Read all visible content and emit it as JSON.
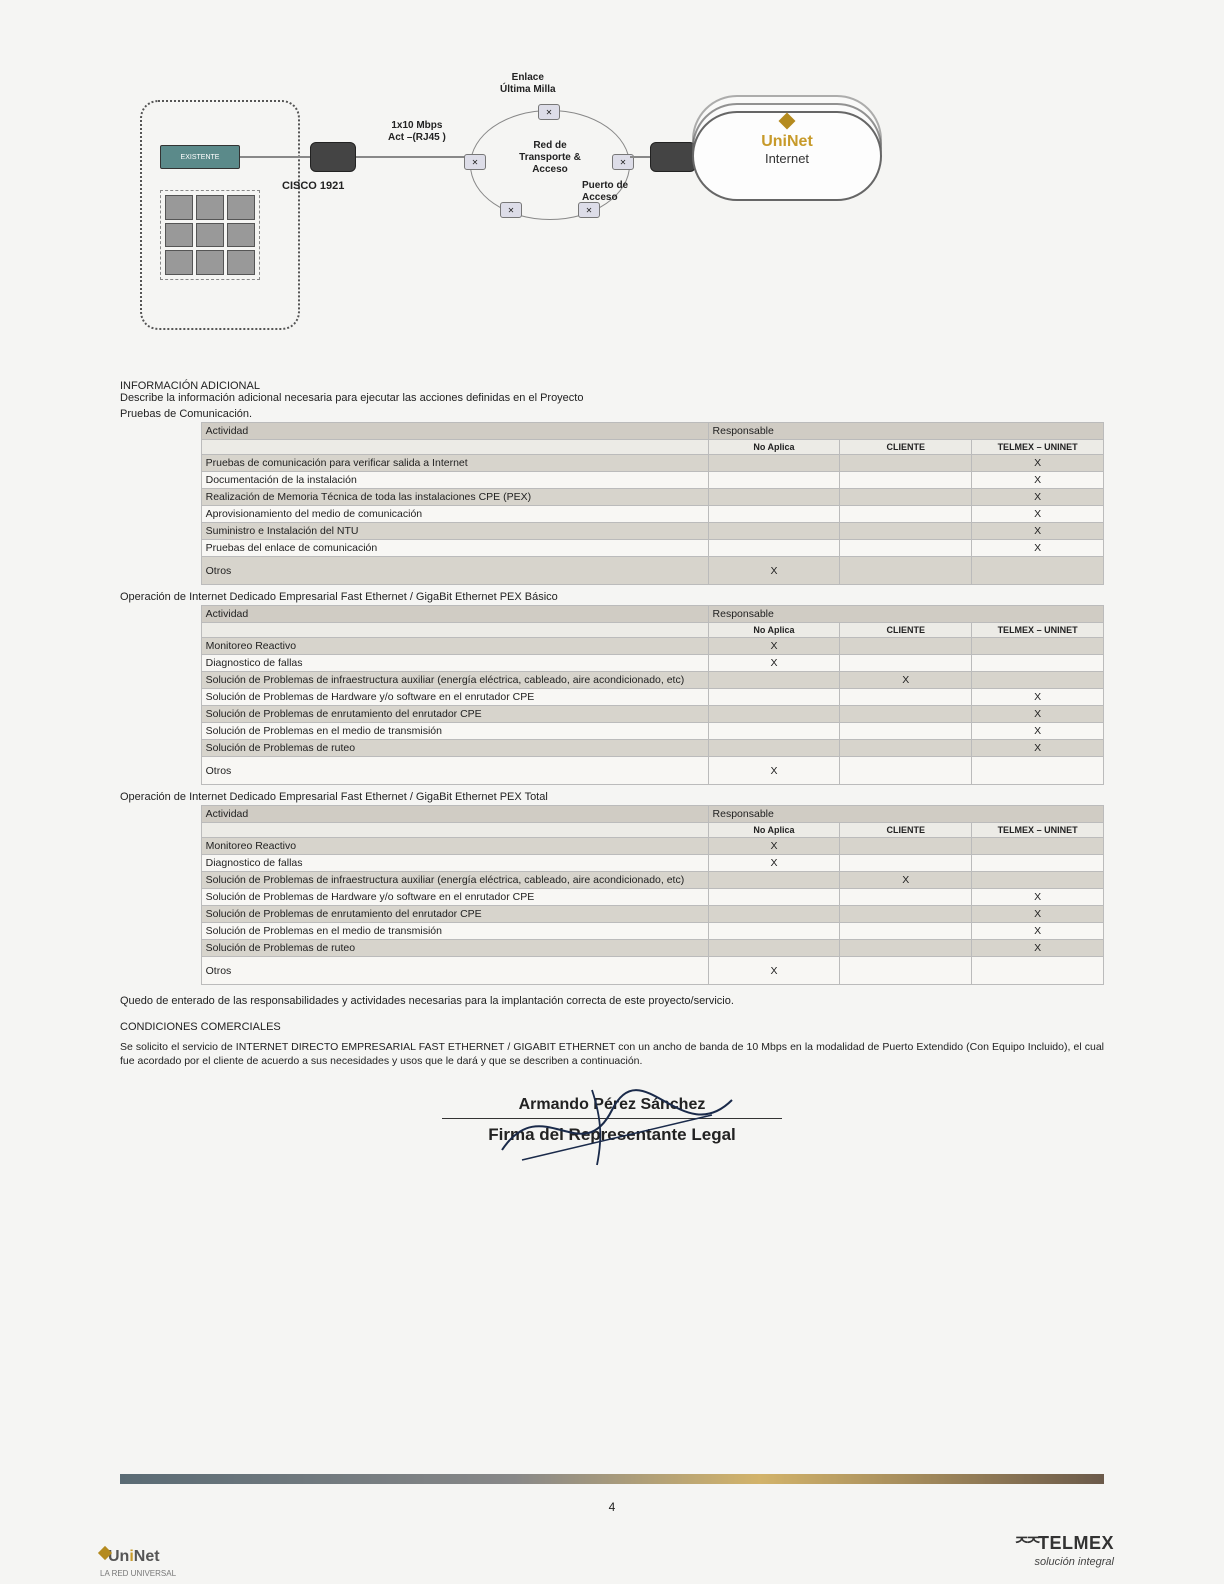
{
  "diagram": {
    "switch_label": "EXISTENTE",
    "cisco_label": "CISCO 1921",
    "link_label_l1": "1x10 Mbps",
    "link_label_l2": "Act –(RJ45 )",
    "enlace_l1": "Enlace",
    "enlace_l2": "Última Milla",
    "transport_l1": "Red de",
    "transport_l2": "Transporte &",
    "transport_l3": "Acceso",
    "puerto_l1": "Puerto de",
    "puerto_l2": "Acceso",
    "cloud_brand_pre": "Un",
    "cloud_brand_accent": "i",
    "cloud_brand_post": "Net",
    "cloud_sub": "Internet"
  },
  "info": {
    "title": "INFORMACIÓN ADICIONAL",
    "desc": "Describe la información adicional necesaria para ejecutar las acciones definidas en el Proyecto",
    "subtitle": "Pruebas de Comunicación."
  },
  "table_headers": {
    "actividad": "Actividad",
    "responsable": "Responsable",
    "no_aplica": "No Aplica",
    "cliente": "CLIENTE",
    "telmex": "TELMEX – UNINET"
  },
  "table1_rows": [
    {
      "act": "Pruebas de comunicación para verificar salida a Internet",
      "na": "",
      "cl": "",
      "tu": "X",
      "shade": true
    },
    {
      "act": "Documentación de la instalación",
      "na": "",
      "cl": "",
      "tu": "X",
      "shade": false
    },
    {
      "act": "Realización de Memoria Técnica de toda las instalaciones CPE (PEX)",
      "na": "",
      "cl": "",
      "tu": "X",
      "shade": true
    },
    {
      "act": "Aprovisionamiento del medio de comunicación",
      "na": "",
      "cl": "",
      "tu": "X",
      "shade": false
    },
    {
      "act": "Suministro e Instalación del NTU",
      "na": "",
      "cl": "",
      "tu": "X",
      "shade": true
    },
    {
      "act": "Pruebas del enlace de comunicación",
      "na": "",
      "cl": "",
      "tu": "X",
      "shade": false
    },
    {
      "act": "Otros",
      "na": "X",
      "cl": "",
      "tu": "",
      "shade": true,
      "tall": true
    }
  ],
  "section2_title": "Operación de Internet Dedicado Empresarial Fast Ethernet / GigaBit Ethernet PEX Básico",
  "table2_rows": [
    {
      "act": "Monitoreo Reactivo",
      "na": "X",
      "cl": "",
      "tu": "",
      "shade": true
    },
    {
      "act": "Diagnostico de fallas",
      "na": "X",
      "cl": "",
      "tu": "",
      "shade": false
    },
    {
      "act": "Solución de Problemas de infraestructura auxiliar (energía eléctrica, cableado, aire acondicionado, etc)",
      "na": "",
      "cl": "X",
      "tu": "",
      "shade": true
    },
    {
      "act": "Solución de Problemas de Hardware y/o software en el enrutador CPE",
      "na": "",
      "cl": "",
      "tu": "X",
      "shade": false
    },
    {
      "act": "Solución de Problemas de enrutamiento del enrutador CPE",
      "na": "",
      "cl": "",
      "tu": "X",
      "shade": true
    },
    {
      "act": "Solución de Problemas en el medio de transmisión",
      "na": "",
      "cl": "",
      "tu": "X",
      "shade": false
    },
    {
      "act": "Solución de Problemas de ruteo",
      "na": "",
      "cl": "",
      "tu": "X",
      "shade": true
    },
    {
      "act": "Otros",
      "na": "X",
      "cl": "",
      "tu": "",
      "shade": false,
      "tall": true
    }
  ],
  "section3_title": "Operación de Internet Dedicado Empresarial Fast Ethernet / GigaBit Ethernet PEX Total",
  "table3_rows": [
    {
      "act": "Monitoreo Reactivo",
      "na": "X",
      "cl": "",
      "tu": "",
      "shade": true
    },
    {
      "act": "Diagnostico de fallas",
      "na": "X",
      "cl": "",
      "tu": "",
      "shade": false
    },
    {
      "act": "Solución de Problemas de infraestructura auxiliar (energía eléctrica, cableado, aire acondicionado, etc)",
      "na": "",
      "cl": "X",
      "tu": "",
      "shade": true
    },
    {
      "act": "Solución de Problemas de Hardware y/o software en el enrutador CPE",
      "na": "",
      "cl": "",
      "tu": "X",
      "shade": false
    },
    {
      "act": "Solución de Problemas de enrutamiento del enrutador CPE",
      "na": "",
      "cl": "",
      "tu": "X",
      "shade": true
    },
    {
      "act": "Solución de Problemas en el medio de transmisión",
      "na": "",
      "cl": "",
      "tu": "X",
      "shade": false
    },
    {
      "act": "Solución de Problemas de ruteo",
      "na": "",
      "cl": "",
      "tu": "X",
      "shade": true
    },
    {
      "act": "Otros",
      "na": "X",
      "cl": "",
      "tu": "",
      "shade": false,
      "tall": true
    }
  ],
  "note": "Quedo de enterado de las responsabilidades y actividades necesarias para la implantación correcta de este proyecto/servicio.",
  "cond": {
    "title": "CONDICIONES COMERCIALES",
    "body": "Se solicito el servicio de INTERNET DIRECTO EMPRESARIAL FAST ETHERNET / GIGABIT ETHERNET con un ancho de banda de 10 Mbps en la modalidad de Puerto Extendido (Con Equipo Incluido), el cual fue acordado por el cliente de acuerdo a sus necesidades y usos que le dará y que se describen a continuación."
  },
  "signature": {
    "name": "Armando Pérez Sánchez",
    "role": "Firma del Representante Legal"
  },
  "footer": {
    "page": "4",
    "left_brand_pre": "Un",
    "left_brand_accent": "i",
    "left_brand_post": "Net",
    "left_sub": "LA RED UNIVERSAL",
    "right_brand": "TELMEX",
    "right_sub": "solución integral"
  }
}
